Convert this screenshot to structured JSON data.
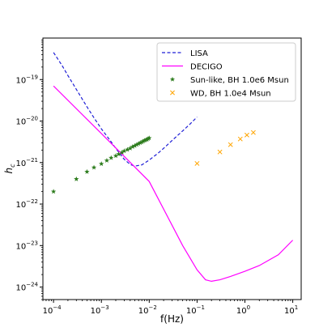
{
  "chart_data": {
    "type": "line",
    "title": "",
    "xlabel": "f(Hz)",
    "ylabel": "h_c",
    "xscale": "log",
    "yscale": "log",
    "xlim": [
      6e-05,
      15
    ],
    "ylim": [
      5e-25,
      1e-18
    ],
    "x_ticks": [
      {
        "value": 0.0001,
        "base": "10",
        "exp": "−4"
      },
      {
        "value": 0.001,
        "base": "10",
        "exp": "−3"
      },
      {
        "value": 0.01,
        "base": "10",
        "exp": "−2"
      },
      {
        "value": 0.1,
        "base": "10",
        "exp": "−1"
      },
      {
        "value": 1,
        "base": "10",
        "exp": "0"
      },
      {
        "value": 10,
        "base": "10",
        "exp": "1"
      }
    ],
    "y_ticks": [
      {
        "value": 1e-24,
        "base": "10",
        "exp": "−24"
      },
      {
        "value": 1e-23,
        "base": "10",
        "exp": "−23"
      },
      {
        "value": 1e-22,
        "base": "10",
        "exp": "−22"
      },
      {
        "value": 1e-21,
        "base": "10",
        "exp": "−21"
      },
      {
        "value": 1e-20,
        "base": "10",
        "exp": "−20"
      },
      {
        "value": 1e-19,
        "base": "10",
        "exp": "−19"
      }
    ],
    "grid": false,
    "legend_position": "top-right",
    "series": [
      {
        "name": "LISA",
        "style": "dashed-line",
        "color": "#1f1fd6",
        "points": [
          [
            0.0001,
            4.5e-19
          ],
          [
            0.00015,
            2.2e-19
          ],
          [
            0.0002,
            1.25e-19
          ],
          [
            0.0003,
            5.8e-20
          ],
          [
            0.0005,
            2.2e-20
          ],
          [
            0.0007,
            1.2e-20
          ],
          [
            0.001,
            6.5e-21
          ],
          [
            0.0015,
            3.5e-21
          ],
          [
            0.002,
            2.2e-21
          ],
          [
            0.003,
            1.2e-21
          ],
          [
            0.004,
            9e-22
          ],
          [
            0.005,
            8.2e-22
          ],
          [
            0.007,
            8.8e-22
          ],
          [
            0.01,
            1.15e-21
          ],
          [
            0.015,
            1.65e-21
          ],
          [
            0.02,
            2.2e-21
          ],
          [
            0.03,
            3.4e-21
          ],
          [
            0.05,
            5.8e-21
          ],
          [
            0.07,
            8.3e-21
          ],
          [
            0.1,
            1.25e-20
          ]
        ]
      },
      {
        "name": "DECIGO",
        "style": "solid-line",
        "color": "#ff00ff",
        "points": [
          [
            0.0001,
            7e-20
          ],
          [
            0.001,
            5e-21
          ],
          [
            0.01,
            3.5e-22
          ],
          [
            0.05,
            1e-23
          ],
          [
            0.1,
            2.6e-24
          ],
          [
            0.15,
            1.5e-24
          ],
          [
            0.2,
            1.38e-24
          ],
          [
            0.3,
            1.5e-24
          ],
          [
            0.5,
            1.8e-24
          ],
          [
            1,
            2.4e-24
          ],
          [
            2,
            3.3e-24
          ],
          [
            5,
            6e-24
          ],
          [
            10,
            1.35e-23
          ]
        ]
      },
      {
        "name": "Sun-like, BH 1.0e6 Msun",
        "style": "star-markers",
        "color": "#2e7d1e",
        "points": [
          [
            0.0001,
            2e-22
          ],
          [
            0.0003,
            4e-22
          ],
          [
            0.0005,
            6e-22
          ],
          [
            0.0007,
            7.6e-22
          ],
          [
            0.001,
            9.3e-22
          ],
          [
            0.0013,
            1.12e-21
          ],
          [
            0.0016,
            1.3e-21
          ],
          [
            0.002,
            1.45e-21
          ],
          [
            0.0023,
            1.6e-21
          ],
          [
            0.0027,
            1.75e-21
          ],
          [
            0.003,
            1.9e-21
          ],
          [
            0.0035,
            2.05e-21
          ],
          [
            0.004,
            2.2e-21
          ],
          [
            0.0045,
            2.4e-21
          ],
          [
            0.005,
            2.55e-21
          ],
          [
            0.0055,
            2.7e-21
          ],
          [
            0.006,
            2.85e-21
          ],
          [
            0.0065,
            3e-21
          ],
          [
            0.007,
            3.1e-21
          ],
          [
            0.0075,
            3.25e-21
          ],
          [
            0.008,
            3.4e-21
          ],
          [
            0.0085,
            3.5e-21
          ],
          [
            0.009,
            3.6e-21
          ],
          [
            0.0095,
            3.75e-21
          ],
          [
            0.01,
            3.9e-21
          ]
        ]
      },
      {
        "name": "WD, BH 1.0e4 Msun",
        "style": "x-markers",
        "color": "#ffa500",
        "points": [
          [
            0.1,
            9.5e-22
          ],
          [
            0.3,
            1.8e-21
          ],
          [
            0.5,
            2.7e-21
          ],
          [
            0.8,
            3.7e-21
          ],
          [
            1.1,
            4.6e-21
          ],
          [
            1.5,
            5.3e-21
          ]
        ]
      }
    ]
  }
}
